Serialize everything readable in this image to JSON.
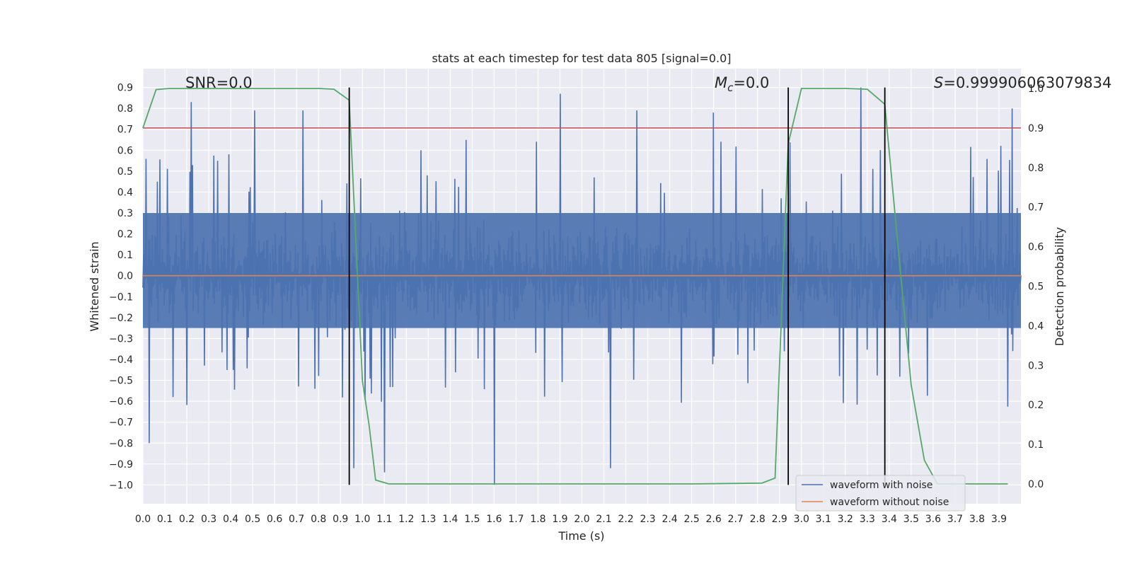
{
  "chart_data": {
    "type": "line",
    "title": "stats at each timestep for test data 805 [signal=0.0]",
    "xlabel": "Time (s)",
    "ylabel": "Whitened strain",
    "y2label": "Detection probability",
    "xlim": [
      0.0,
      4.0
    ],
    "ylim": [
      -1.09,
      0.99
    ],
    "y2lim": [
      -0.05,
      1.05
    ],
    "grid": true,
    "x_ticks": [
      "0.0",
      "0.1",
      "0.2",
      "0.3",
      "0.4",
      "0.5",
      "0.6",
      "0.7",
      "0.8",
      "0.9",
      "1.0",
      "1.1",
      "1.2",
      "1.3",
      "1.4",
      "1.5",
      "1.6",
      "1.7",
      "1.8",
      "1.9",
      "2.0",
      "2.1",
      "2.2",
      "2.3",
      "2.4",
      "2.5",
      "2.6",
      "2.7",
      "2.8",
      "2.9",
      "3.0",
      "3.1",
      "3.2",
      "3.3",
      "3.4",
      "3.5",
      "3.6",
      "3.7",
      "3.8",
      "3.9"
    ],
    "y_ticks": [
      "0.9",
      "0.8",
      "0.7",
      "0.6",
      "0.5",
      "0.4",
      "0.3",
      "0.2",
      "0.1",
      "0.0",
      "−0.1",
      "−0.2",
      "−0.3",
      "−0.4",
      "−0.5",
      "−0.6",
      "−0.7",
      "−0.8",
      "−0.9",
      "−1.0"
    ],
    "y2_ticks": [
      "1.0",
      "0.9",
      "0.8",
      "0.7",
      "0.6",
      "0.5",
      "0.4",
      "0.3",
      "0.2",
      "0.1",
      "0.0"
    ],
    "annotations": {
      "snr": "SNR=0.0",
      "mc_symbol": "M",
      "mc_sub": "c",
      "mc_value": "=0.0",
      "s_symbol": "S",
      "s_value": "=0.999906063079834"
    },
    "noise_series": {
      "name": "waveform with noise",
      "color": "#4c72b0",
      "t_start": 0.0,
      "t_end": 4.0,
      "num_samples": 1400,
      "band_low": -0.25,
      "band_high": 0.3,
      "seed": 805,
      "spikes": [
        {
          "t": 0.03,
          "v": -0.8
        },
        {
          "t": 0.22,
          "v": 0.83
        },
        {
          "t": 0.51,
          "v": 0.79
        },
        {
          "t": 0.73,
          "v": 0.79
        },
        {
          "t": 0.96,
          "v": -0.92
        },
        {
          "t": 1.1,
          "v": -0.94
        },
        {
          "t": 1.6,
          "v": -1.0
        },
        {
          "t": 1.9,
          "v": 0.87
        },
        {
          "t": 2.13,
          "v": -0.92
        },
        {
          "t": 2.25,
          "v": 0.79
        },
        {
          "t": 2.6,
          "v": 0.78
        },
        {
          "t": 3.27,
          "v": 0.9
        },
        {
          "t": 3.96,
          "v": 0.8
        }
      ]
    },
    "clean_series": {
      "name": "waveform without noise",
      "color": "#dd8452",
      "x": [
        0.0,
        4.0
      ],
      "y": [
        0.0,
        0.0
      ]
    },
    "probability_series": {
      "name": "detection probability",
      "color": "#55a868",
      "x": [
        0.0,
        0.06,
        0.12,
        0.2,
        0.5,
        0.8,
        0.87,
        0.94,
        1.0,
        1.03,
        1.06,
        1.12,
        1.5,
        2.0,
        2.5,
        2.82,
        2.88,
        2.94,
        3.0,
        3.2,
        3.3,
        3.38,
        3.44,
        3.5,
        3.56,
        3.62,
        3.94
      ],
      "y": [
        0.9,
        0.997,
        1.0,
        1.0,
        1.0,
        1.0,
        0.998,
        0.97,
        0.26,
        0.15,
        0.01,
        0.0,
        0.0,
        0.0,
        0.0,
        0.002,
        0.015,
        0.86,
        1.0,
        1.0,
        0.998,
        0.96,
        0.6,
        0.25,
        0.06,
        0.0,
        0.0
      ]
    },
    "threshold_line": {
      "y2": 0.9,
      "color": "#c44e52"
    },
    "vertical_markers": {
      "x": [
        0.94,
        2.94,
        3.38
      ],
      "color": "#000000",
      "y_top": 0.9
    },
    "legend": {
      "position": "lower-right",
      "entries": [
        {
          "label": "waveform with noise",
          "color": "#4c72b0"
        },
        {
          "label": "waveform without noise",
          "color": "#dd8452"
        }
      ]
    }
  }
}
